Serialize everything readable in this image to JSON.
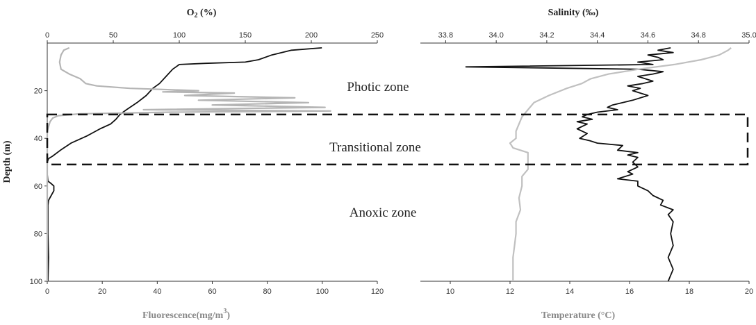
{
  "chart_data": [
    {
      "type": "line",
      "title": "",
      "y_axis": {
        "label": "Depth (m)",
        "range": [
          0,
          100
        ],
        "inverted": true,
        "ticks": [
          20,
          40,
          60,
          80,
          100
        ]
      },
      "top_axis": {
        "label": "O2 (%)",
        "range": [
          0,
          250
        ],
        "ticks": [
          0,
          50,
          100,
          150,
          200,
          250
        ]
      },
      "bottom_axis": {
        "label": "Fluorescence(mg/m",
        "label_superscript": "3",
        "label_suffix": ")",
        "range": [
          0,
          120
        ],
        "ticks": [
          0,
          20,
          40,
          60,
          80,
          100,
          120
        ]
      },
      "series": [
        {
          "axis": "top",
          "color": "#111111",
          "points": [
            [
              208,
              2
            ],
            [
              185,
              3
            ],
            [
              170,
              5
            ],
            [
              160,
              7
            ],
            [
              150,
              8
            ],
            [
              120,
              8.5
            ],
            [
              100,
              9
            ],
            [
              95,
              11
            ],
            [
              90,
              14
            ],
            [
              85,
              17
            ],
            [
              80,
              19
            ],
            [
              75,
              22
            ],
            [
              68,
              25
            ],
            [
              60,
              28
            ],
            [
              55,
              30
            ],
            [
              52,
              32
            ],
            [
              48,
              34
            ],
            [
              40,
              36
            ],
            [
              30,
              39
            ],
            [
              18,
              42
            ],
            [
              10,
              45
            ],
            [
              4,
              47.5
            ],
            [
              1,
              48.5
            ],
            [
              0,
              50
            ],
            [
              0,
              55
            ],
            [
              0.5,
              58
            ],
            [
              3,
              59
            ],
            [
              5,
              60
            ],
            [
              5,
              62
            ],
            [
              3,
              64
            ],
            [
              1,
              66
            ],
            [
              0.5,
              68
            ],
            [
              0.5,
              80
            ],
            [
              1,
              90
            ],
            [
              0.5,
              100
            ]
          ]
        },
        {
          "axis": "bottom",
          "color": "#b5b5b5",
          "points": [
            [
              8,
              2
            ],
            [
              6,
              3
            ],
            [
              5,
              5
            ],
            [
              4.5,
              8
            ],
            [
              5,
              11
            ],
            [
              8,
              13
            ],
            [
              12,
              15
            ],
            [
              14,
              17
            ],
            [
              18,
              18
            ],
            [
              30,
              19
            ],
            [
              55,
              20
            ],
            [
              42,
              20.5
            ],
            [
              68,
              21
            ],
            [
              50,
              22
            ],
            [
              90,
              23
            ],
            [
              55,
              24
            ],
            [
              95,
              25
            ],
            [
              60,
              26
            ],
            [
              101,
              27
            ],
            [
              35,
              28
            ],
            [
              103,
              28.5
            ],
            [
              45,
              29
            ],
            [
              12,
              29.7
            ],
            [
              4,
              30.5
            ],
            [
              2,
              31.5
            ],
            [
              1,
              33
            ],
            [
              0.5,
              35
            ],
            [
              0,
              37
            ],
            [
              0,
              100
            ]
          ]
        }
      ]
    },
    {
      "type": "line",
      "title": "",
      "y_axis": {
        "range": [
          0,
          100
        ],
        "inverted": true
      },
      "top_axis": {
        "label": "Salinity (‰)",
        "range": [
          33.7,
          35.0
        ],
        "ticks": [
          "33.8",
          "34.0",
          "34.2",
          "34.4",
          "34.6",
          "34.8",
          "35.0"
        ]
      },
      "bottom_axis": {
        "label": "Temperature (°C)",
        "range": [
          9,
          20
        ],
        "ticks": [
          10,
          12,
          14,
          16,
          18,
          20
        ]
      },
      "series": [
        {
          "axis": "top",
          "color": "#111111",
          "points": [
            [
              34.69,
              2
            ],
            [
              34.64,
              3
            ],
            [
              34.7,
              4
            ],
            [
              34.6,
              5
            ],
            [
              34.64,
              6
            ],
            [
              34.66,
              7
            ],
            [
              34.56,
              8
            ],
            [
              34.62,
              9
            ],
            [
              33.88,
              10
            ],
            [
              34.56,
              11
            ],
            [
              34.66,
              12
            ],
            [
              34.62,
              13
            ],
            [
              34.56,
              14
            ],
            [
              34.62,
              16
            ],
            [
              34.58,
              17
            ],
            [
              34.52,
              18
            ],
            [
              34.57,
              19
            ],
            [
              34.54,
              20
            ],
            [
              34.6,
              22
            ],
            [
              34.54,
              24
            ],
            [
              34.5,
              25
            ],
            [
              34.46,
              26
            ],
            [
              34.44,
              27
            ],
            [
              34.48,
              28
            ],
            [
              34.4,
              29
            ],
            [
              34.36,
              30
            ],
            [
              34.34,
              31
            ],
            [
              34.38,
              32
            ],
            [
              34.32,
              33
            ],
            [
              34.36,
              34
            ],
            [
              34.32,
              36
            ],
            [
              34.36,
              38
            ],
            [
              34.33,
              40
            ],
            [
              34.37,
              41
            ],
            [
              34.4,
              42
            ],
            [
              34.5,
              43
            ],
            [
              34.48,
              45
            ],
            [
              34.56,
              46
            ],
            [
              34.52,
              47
            ],
            [
              34.56,
              48
            ],
            [
              34.54,
              50
            ],
            [
              34.56,
              52
            ],
            [
              34.52,
              54
            ],
            [
              34.54,
              55
            ],
            [
              34.48,
              57
            ],
            [
              34.56,
              58
            ],
            [
              34.56,
              60
            ],
            [
              34.6,
              62
            ],
            [
              34.62,
              64
            ],
            [
              34.66,
              66
            ],
            [
              34.65,
              68
            ],
            [
              34.7,
              70
            ],
            [
              34.68,
              72
            ],
            [
              34.7,
              75
            ],
            [
              34.69,
              80
            ],
            [
              34.7,
              85
            ],
            [
              34.68,
              90
            ],
            [
              34.7,
              95
            ],
            [
              34.68,
              100
            ]
          ]
        },
        {
          "axis": "bottom",
          "color": "#c0c0c0",
          "points": [
            [
              19.4,
              2
            ],
            [
              19.3,
              3
            ],
            [
              19.0,
              5
            ],
            [
              18.4,
              7
            ],
            [
              17.5,
              9
            ],
            [
              16.3,
              11
            ],
            [
              15.3,
              13
            ],
            [
              14.7,
              15
            ],
            [
              14.4,
              17
            ],
            [
              13.9,
              19
            ],
            [
              13.3,
              22
            ],
            [
              12.8,
              25
            ],
            [
              12.6,
              28
            ],
            [
              12.4,
              31
            ],
            [
              12.3,
              34
            ],
            [
              12.2,
              37
            ],
            [
              12.2,
              40
            ],
            [
              12.0,
              42
            ],
            [
              12.1,
              44
            ],
            [
              12.6,
              46
            ],
            [
              12.6,
              50
            ],
            [
              12.6,
              53
            ],
            [
              12.4,
              56
            ],
            [
              12.4,
              60
            ],
            [
              12.3,
              65
            ],
            [
              12.35,
              70
            ],
            [
              12.2,
              75
            ],
            [
              12.2,
              80
            ],
            [
              12.15,
              85
            ],
            [
              12.1,
              90
            ],
            [
              12.1,
              95
            ],
            [
              12.1,
              100
            ]
          ]
        }
      ]
    }
  ],
  "annotations": {
    "photic": "Photic zone",
    "transitional": "Transitional zone",
    "anoxic": "Anoxic zone",
    "transitional_band_depth": [
      30,
      51
    ]
  }
}
